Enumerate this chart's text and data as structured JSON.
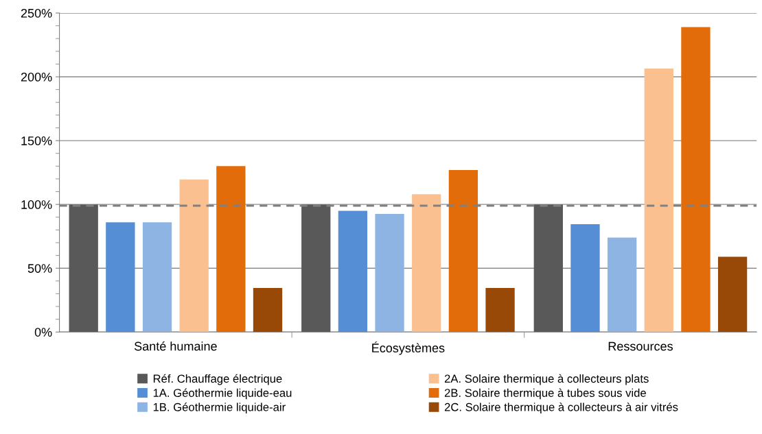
{
  "chart_data": {
    "type": "bar",
    "categories": [
      "Santé humaine",
      "Écosystèmes",
      "Ressources"
    ],
    "series": [
      {
        "name": "Réf. Chauffage électrique",
        "color": "#595959",
        "values": [
          100,
          100,
          100
        ]
      },
      {
        "name": "1A. Géothermie liquide-eau",
        "color": "#558ed5",
        "values": [
          86,
          95,
          84.5
        ]
      },
      {
        "name": "1B. Géothermie liquide-air",
        "color": "#8eb4e3",
        "values": [
          86,
          92.5,
          74
        ]
      },
      {
        "name": "2A. Solaire thermique à collecteurs plats",
        "color": "#fac090",
        "values": [
          119.5,
          108,
          206.5
        ]
      },
      {
        "name": "2B. Solaire thermique à tubes sous vide",
        "color": "#e36c0a",
        "values": [
          130,
          127,
          239
        ]
      },
      {
        "name": "2C. Solaire thermique à collecteurs à air vitrés",
        "color": "#984807",
        "values": [
          34.5,
          34.5,
          59
        ]
      }
    ],
    "ylim": [
      0,
      250
    ],
    "yticks": [
      {
        "value": 0,
        "label": "0%"
      },
      {
        "value": 50,
        "label": "50%"
      },
      {
        "value": 100,
        "label": "100%"
      },
      {
        "value": 150,
        "label": "150%"
      },
      {
        "value": 200,
        "label": "200%"
      },
      {
        "value": 250,
        "label": "250%"
      }
    ],
    "ref_lines": [
      {
        "axis": "y",
        "value": 99,
        "label": null,
        "color": "#808080",
        "line_style": "dashed"
      }
    ],
    "grid": "y",
    "legend": "bottom"
  }
}
